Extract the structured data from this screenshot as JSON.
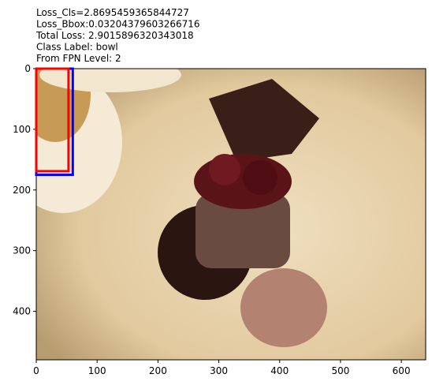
{
  "chart_data": {
    "type": "image",
    "title_lines": [
      "Loss_Cls=2.8695459365844727",
      "Loss_Bbox:0.03204379603266716",
      "Total Loss: 2.9015896320343018",
      "Class Label: bowl",
      "From FPN Level: 2"
    ],
    "xlim": [
      0,
      640
    ],
    "ylim": [
      0,
      480
    ],
    "y_inverted": true,
    "xticks": [
      0,
      100,
      200,
      300,
      400,
      500,
      600
    ],
    "yticks": [
      0,
      100,
      200,
      300,
      400
    ],
    "boxes": [
      {
        "color": "#0000ff",
        "x0": 0,
        "y0": 0,
        "x1": 60,
        "y1": 175
      },
      {
        "color": "#ff0000",
        "x0": 0,
        "y0": 0,
        "x1": 53,
        "y1": 169
      }
    ]
  }
}
